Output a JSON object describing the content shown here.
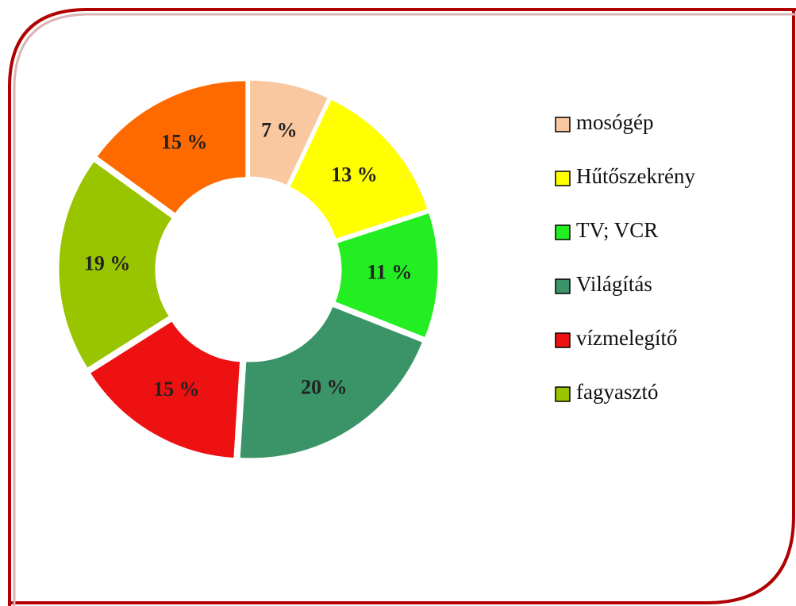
{
  "chart_data": {
    "type": "pie",
    "categories": [
      "mosógép",
      "Hűtőszekrény",
      "TV; VCR",
      "Világítás",
      "vízmelegítő",
      "fagyasztó",
      null
    ],
    "values": [
      7,
      13,
      11,
      20,
      15,
      19,
      15
    ],
    "value_labels": [
      "7 %",
      "13 %",
      "11 %",
      "20 %",
      "15 %",
      "19 %",
      "15 %"
    ],
    "colors": [
      "#f9c8a0",
      "#ffff00",
      "#22ee22",
      "#3a9468",
      "#ee1111",
      "#99c400",
      "#ff6a00"
    ],
    "donut": true,
    "legend": "right"
  }
}
